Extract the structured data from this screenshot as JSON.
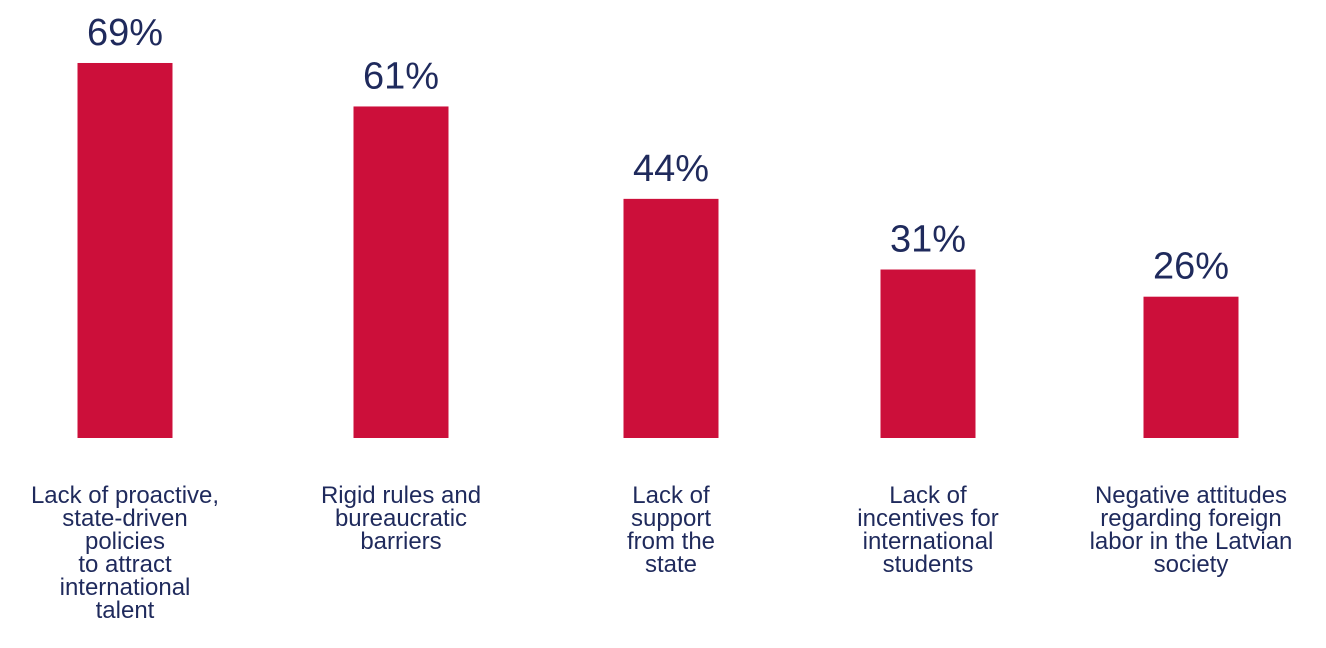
{
  "chart_data": {
    "type": "bar",
    "categories": [
      "Lack of proactive,\nstate-driven\npolicies\nto attract\ninternational\ntalent",
      "Rigid rules and\nbureaucratic\nbarriers",
      "Lack of\nsupport\nfrom the\nstate",
      "Lack of\nincentives for\ninternational\nstudents",
      "Negative attitudes\nregarding foreign\nlabor in the Latvian\nsociety"
    ],
    "values": [
      69,
      61,
      44,
      31,
      26
    ],
    "data_labels": [
      "69%",
      "61%",
      "44%",
      "31%",
      "26%"
    ],
    "ylim": [
      0,
      100
    ],
    "grid": false,
    "colors": {
      "bar": "#cc0f3a",
      "value_text": "#1f2a5c",
      "category_text": "#1f2a5c"
    }
  }
}
